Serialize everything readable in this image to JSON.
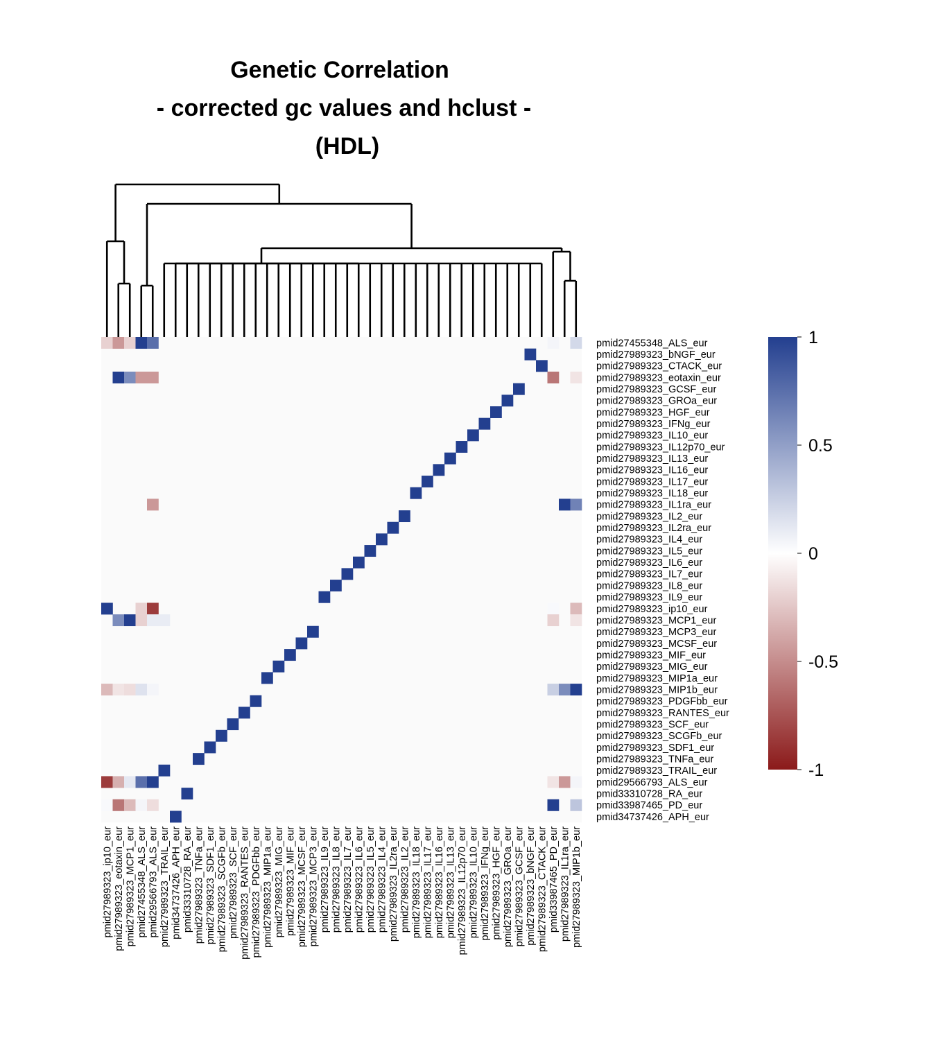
{
  "chart_data": {
    "type": "heatmap",
    "title": [
      "Genetic Correlation",
      "- corrected gc values and hclust -",
      "(HDL)"
    ],
    "row_labels": [
      "pmid27455348_ALS_eur",
      "pmid27989323_bNGF_eur",
      "pmid27989323_CTACK_eur",
      "pmid27989323_eotaxin_eur",
      "pmid27989323_GCSF_eur",
      "pmid27989323_GROa_eur",
      "pmid27989323_HGF_eur",
      "pmid27989323_IFNg_eur",
      "pmid27989323_IL10_eur",
      "pmid27989323_IL12p70_eur",
      "pmid27989323_IL13_eur",
      "pmid27989323_IL16_eur",
      "pmid27989323_IL17_eur",
      "pmid27989323_IL18_eur",
      "pmid27989323_IL1ra_eur",
      "pmid27989323_IL2_eur",
      "pmid27989323_IL2ra_eur",
      "pmid27989323_IL4_eur",
      "pmid27989323_IL5_eur",
      "pmid27989323_IL6_eur",
      "pmid27989323_IL7_eur",
      "pmid27989323_IL8_eur",
      "pmid27989323_IL9_eur",
      "pmid27989323_ip10_eur",
      "pmid27989323_MCP1_eur",
      "pmid27989323_MCP3_eur",
      "pmid27989323_MCSF_eur",
      "pmid27989323_MIF_eur",
      "pmid27989323_MIG_eur",
      "pmid27989323_MIP1a_eur",
      "pmid27989323_MIP1b_eur",
      "pmid27989323_PDGFbb_eur",
      "pmid27989323_RANTES_eur",
      "pmid27989323_SCF_eur",
      "pmid27989323_SCGFb_eur",
      "pmid27989323_SDF1_eur",
      "pmid27989323_TNFa_eur",
      "pmid27989323_TRAIL_eur",
      "pmid29566793_ALS_eur",
      "pmid33310728_RA_eur",
      "pmid33987465_PD_eur",
      "pmid34737426_APH_eur"
    ],
    "col_labels": [
      "pmid27989323_ip10_eur",
      "pmid27989323_eotaxin_eur",
      "pmid27989323_MCP1_eur",
      "pmid27455348_ALS_eur",
      "pmid29566793_ALS_eur",
      "pmid27989323_TRAIL_eur",
      "pmid34737426_APH_eur",
      "pmid33310728_RA_eur",
      "pmid27989323_TNFa_eur",
      "pmid27989323_SDF1_eur",
      "pmid27989323_SCGFb_eur",
      "pmid27989323_SCF_eur",
      "pmid27989323_RANTES_eur",
      "pmid27989323_PDGFbb_eur",
      "pmid27989323_MIP1a_eur",
      "pmid27989323_MIG_eur",
      "pmid27989323_MIF_eur",
      "pmid27989323_MCSF_eur",
      "pmid27989323_MCP3_eur",
      "pmid27989323_IL9_eur",
      "pmid27989323_IL8_eur",
      "pmid27989323_IL7_eur",
      "pmid27989323_IL6_eur",
      "pmid27989323_IL5_eur",
      "pmid27989323_IL4_eur",
      "pmid27989323_IL2ra_eur",
      "pmid27989323_IL2_eur",
      "pmid27989323_IL18_eur",
      "pmid27989323_IL17_eur",
      "pmid27989323_IL16_eur",
      "pmid27989323_IL13_eur",
      "pmid27989323_IL12p70_eur",
      "pmid27989323_IL10_eur",
      "pmid27989323_IFNg_eur",
      "pmid27989323_HGF_eur",
      "pmid27989323_GROa_eur",
      "pmid27989323_GCSF_eur",
      "pmid27989323_bNGF_eur",
      "pmid27989323_CTACK_eur",
      "pmid33987465_PD_eur",
      "pmid27989323_IL1ra_eur",
      "pmid27989323_MIP1b_eur"
    ],
    "default_value": 0,
    "cells": [
      {
        "row": "pmid27455348_ALS_eur",
        "col": "pmid27989323_ip10_eur",
        "value": -0.2
      },
      {
        "row": "pmid27455348_ALS_eur",
        "col": "pmid27989323_eotaxin_eur",
        "value": -0.45
      },
      {
        "row": "pmid27455348_ALS_eur",
        "col": "pmid27989323_MCP1_eur",
        "value": -0.2
      },
      {
        "row": "pmid27455348_ALS_eur",
        "col": "pmid27455348_ALS_eur",
        "value": 1
      },
      {
        "row": "pmid27455348_ALS_eur",
        "col": "pmid29566793_ALS_eur",
        "value": 0.75
      },
      {
        "row": "pmid27455348_ALS_eur",
        "col": "pmid33987465_PD_eur",
        "value": 0.05
      },
      {
        "row": "pmid27455348_ALS_eur",
        "col": "pmid27989323_MIP1b_eur",
        "value": 0.2
      },
      {
        "row": "pmid27989323_eotaxin_eur",
        "col": "pmid27989323_eotaxin_eur",
        "value": 1
      },
      {
        "row": "pmid27989323_eotaxin_eur",
        "col": "pmid27989323_MCP1_eur",
        "value": 0.6
      },
      {
        "row": "pmid27989323_eotaxin_eur",
        "col": "pmid27455348_ALS_eur",
        "value": -0.45
      },
      {
        "row": "pmid27989323_eotaxin_eur",
        "col": "pmid29566793_ALS_eur",
        "value": -0.45
      },
      {
        "row": "pmid27989323_eotaxin_eur",
        "col": "pmid33987465_PD_eur",
        "value": -0.6
      },
      {
        "row": "pmid27989323_eotaxin_eur",
        "col": "pmid27989323_MIP1b_eur",
        "value": -0.12
      },
      {
        "row": "pmid27989323_IL1ra_eur",
        "col": "pmid29566793_ALS_eur",
        "value": -0.45
      },
      {
        "row": "pmid27989323_IL1ra_eur",
        "col": "pmid27989323_IL1ra_eur",
        "value": 1
      },
      {
        "row": "pmid27989323_IL1ra_eur",
        "col": "pmid27989323_MIP1b_eur",
        "value": 0.65
      },
      {
        "row": "pmid27989323_ip10_eur",
        "col": "pmid27989323_ip10_eur",
        "value": 1
      },
      {
        "row": "pmid27989323_ip10_eur",
        "col": "pmid27455348_ALS_eur",
        "value": -0.2
      },
      {
        "row": "pmid27989323_ip10_eur",
        "col": "pmid29566793_ALS_eur",
        "value": -0.85
      },
      {
        "row": "pmid27989323_ip10_eur",
        "col": "pmid33987465_PD_eur",
        "value": 0.03
      },
      {
        "row": "pmid27989323_ip10_eur",
        "col": "pmid27989323_MIP1b_eur",
        "value": -0.3
      },
      {
        "row": "pmid27989323_MCP1_eur",
        "col": "pmid27989323_eotaxin_eur",
        "value": 0.6
      },
      {
        "row": "pmid27989323_MCP1_eur",
        "col": "pmid27989323_MCP1_eur",
        "value": 1
      },
      {
        "row": "pmid27989323_MCP1_eur",
        "col": "pmid27455348_ALS_eur",
        "value": -0.2
      },
      {
        "row": "pmid27989323_MCP1_eur",
        "col": "pmid29566793_ALS_eur",
        "value": 0.1
      },
      {
        "row": "pmid27989323_MCP1_eur",
        "col": "pmid27989323_TRAIL_eur",
        "value": 0.1
      },
      {
        "row": "pmid27989323_MCP1_eur",
        "col": "pmid33987465_PD_eur",
        "value": -0.2
      },
      {
        "row": "pmid27989323_MCP1_eur",
        "col": "pmid27989323_MIP1b_eur",
        "value": -0.12
      },
      {
        "row": "pmid27989323_MIP1b_eur",
        "col": "pmid27989323_ip10_eur",
        "value": -0.3
      },
      {
        "row": "pmid27989323_MIP1b_eur",
        "col": "pmid27989323_eotaxin_eur",
        "value": -0.12
      },
      {
        "row": "pmid27989323_MIP1b_eur",
        "col": "pmid27989323_MCP1_eur",
        "value": -0.15
      },
      {
        "row": "pmid27989323_MIP1b_eur",
        "col": "pmid27455348_ALS_eur",
        "value": 0.15
      },
      {
        "row": "pmid27989323_MIP1b_eur",
        "col": "pmid29566793_ALS_eur",
        "value": 0.05
      },
      {
        "row": "pmid27989323_MIP1b_eur",
        "col": "pmid33987465_PD_eur",
        "value": 0.25
      },
      {
        "row": "pmid27989323_MIP1b_eur",
        "col": "pmid27989323_IL1ra_eur",
        "value": 0.6
      },
      {
        "row": "pmid27989323_MIP1b_eur",
        "col": "pmid27989323_MIP1b_eur",
        "value": 1
      },
      {
        "row": "pmid27989323_TRAIL_eur",
        "col": "pmid27989323_TRAIL_eur",
        "value": 1
      },
      {
        "row": "pmid29566793_ALS_eur",
        "col": "pmid27989323_ip10_eur",
        "value": -0.85
      },
      {
        "row": "pmid29566793_ALS_eur",
        "col": "pmid27989323_eotaxin_eur",
        "value": -0.35
      },
      {
        "row": "pmid29566793_ALS_eur",
        "col": "pmid27989323_MCP1_eur",
        "value": 0.12
      },
      {
        "row": "pmid29566793_ALS_eur",
        "col": "pmid27455348_ALS_eur",
        "value": 0.75
      },
      {
        "row": "pmid29566793_ALS_eur",
        "col": "pmid29566793_ALS_eur",
        "value": 1
      },
      {
        "row": "pmid29566793_ALS_eur",
        "col": "pmid33987465_PD_eur",
        "value": -0.12
      },
      {
        "row": "pmid29566793_ALS_eur",
        "col": "pmid27989323_IL1ra_eur",
        "value": -0.45
      },
      {
        "row": "pmid29566793_ALS_eur",
        "col": "pmid27989323_MIP1b_eur",
        "value": 0.05
      },
      {
        "row": "pmid33310728_RA_eur",
        "col": "pmid33310728_RA_eur",
        "value": 1
      },
      {
        "row": "pmid33987465_PD_eur",
        "col": "pmid27989323_ip10_eur",
        "value": 0.03
      },
      {
        "row": "pmid33987465_PD_eur",
        "col": "pmid27989323_eotaxin_eur",
        "value": -0.6
      },
      {
        "row": "pmid33987465_PD_eur",
        "col": "pmid27989323_MCP1_eur",
        "value": -0.3
      },
      {
        "row": "pmid33987465_PD_eur",
        "col": "pmid27455348_ALS_eur",
        "value": 0.05
      },
      {
        "row": "pmid33987465_PD_eur",
        "col": "pmid29566793_ALS_eur",
        "value": -0.15
      },
      {
        "row": "pmid33987465_PD_eur",
        "col": "pmid33987465_PD_eur",
        "value": 1
      },
      {
        "row": "pmid33987465_PD_eur",
        "col": "pmid27989323_MIP1b_eur",
        "value": 0.3
      },
      {
        "row": "pmid34737426_APH_eur",
        "col": "pmid34737426_APH_eur",
        "value": 1
      }
    ],
    "color_scale": {
      "min": -1,
      "max": 1,
      "low": "#8b1a1a",
      "mid": "#ffffff",
      "high": "#233f8f"
    },
    "legend_ticks": [
      "1",
      "0.5",
      "0",
      "-0.5",
      "-1"
    ],
    "legend_tick_values": [
      1,
      0.5,
      0,
      -0.5,
      -1
    ],
    "legend_placement": "right",
    "dendrogram": "column hclust",
    "grid": false
  }
}
